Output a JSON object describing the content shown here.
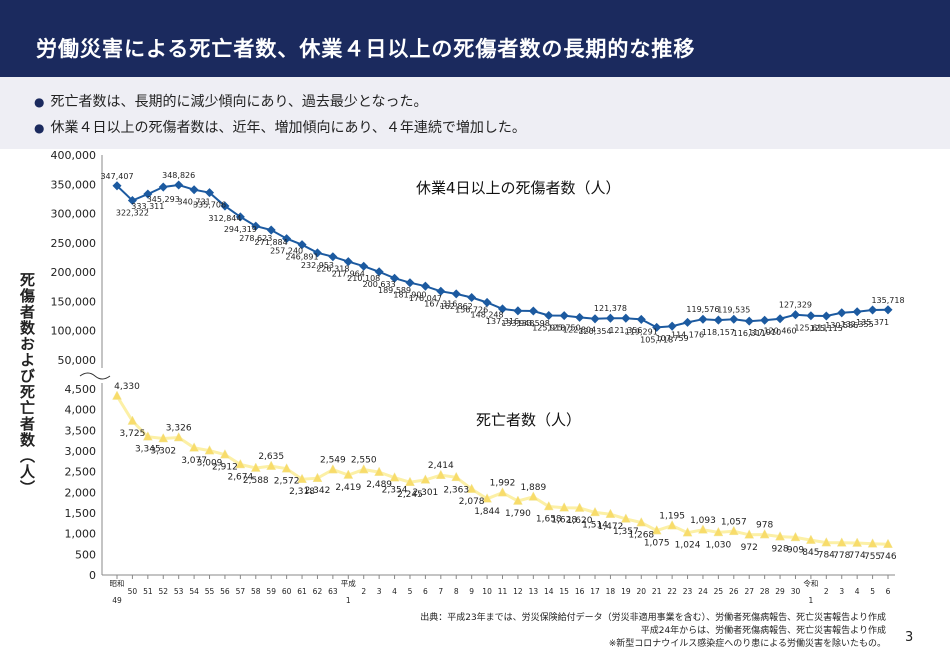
{
  "header": {
    "title": "労働災害による死亡者数、休業４日以上の死傷者数の長期的な推移"
  },
  "bullets": [
    "死亡者数は、長期的に減少傾向にあり、過去最少となった。",
    "休業４日以上の死傷者数は、近年、増加傾向にあり、４年連続で増加した。"
  ],
  "colors": {
    "header_bg": "#1b2a5e",
    "injury_series": "#1c5aa0",
    "death_series": "#fcf0a6",
    "death_marker": "#f8dc6a"
  },
  "chart_data": {
    "type": "line",
    "ylabel": "死傷者数および死亡者数（人）",
    "x_labels": [
      "昭和\n49",
      "50",
      "51",
      "52",
      "53",
      "54",
      "55",
      "56",
      "57",
      "58",
      "59",
      "60",
      "61",
      "62",
      "63",
      "平成\n1",
      "2",
      "3",
      "4",
      "5",
      "6",
      "7",
      "8",
      "9",
      "10",
      "11",
      "12",
      "13",
      "14",
      "15",
      "16",
      "17",
      "18",
      "19",
      "20",
      "21",
      "22",
      "23",
      "24",
      "25",
      "26",
      "27",
      "28",
      "29",
      "30",
      "令和\n1",
      "2",
      "3",
      "4",
      "5",
      "6"
    ],
    "series": [
      {
        "name": "休業4日以上の死傷者数（人）",
        "ylim": [
          50000,
          400000
        ],
        "yticks": [
          "400,000",
          "350,000",
          "300,000",
          "250,000",
          "200,000",
          "150,000",
          "100,000",
          "50,000"
        ],
        "values": [
          347407,
          322322,
          333311,
          345293,
          348826,
          340731,
          335706,
          312844,
          294319,
          278623,
          271884,
          257240,
          246891,
          232953,
          226318,
          217964,
          210108,
          200633,
          189589,
          181900,
          176047,
          167316,
          162862,
          156726,
          148248,
          137316,
          133948,
          133598,
          125918,
          125750,
          122804,
          120354,
          121378,
          121356,
          119291,
          105718,
          107759,
          114176,
          119576,
          118157,
          119535,
          116311,
          117910,
          120460,
          127329,
          125611,
          125115,
          130586,
          132355,
          135371,
          135718
        ],
        "labels": [
          "347,407",
          "322,322",
          "333,311",
          "345,293",
          "348,826",
          "340,731",
          "335,706",
          "312,844",
          "294,319",
          "278,623",
          "271,884",
          "257,240",
          "246,891",
          "232,953",
          "226,318",
          "217,964",
          "210,108",
          "200,633",
          "189,589",
          "181,900",
          "176,047",
          "167,316",
          "162,862",
          "156,726",
          "148,248",
          "137,316",
          "133,948",
          "133,598",
          "125,918",
          "125,750",
          "122,804",
          "120,354",
          "121,378",
          "121,356",
          "119,291",
          "105,718",
          "107,759",
          "114,176",
          "119,576",
          "118,157",
          "119,535",
          "116,311",
          "117,910",
          "120,460",
          "127,329",
          "125,611",
          "125,115",
          "130,586",
          "132,355",
          "135,371",
          "135,718"
        ]
      },
      {
        "name": "死亡者数（人）",
        "ylim": [
          0,
          4500
        ],
        "yticks": [
          "4,500",
          "4,000",
          "3,500",
          "3,000",
          "2,500",
          "2,000",
          "1,500",
          "1,000",
          "500",
          "0"
        ],
        "values": [
          4330,
          3725,
          3345,
          3302,
          3326,
          3077,
          3009,
          2912,
          2674,
          2588,
          2635,
          2572,
          2318,
          2342,
          2549,
          2419,
          2550,
          2489,
          2354,
          2245,
          2301,
          2414,
          2363,
          2078,
          1844,
          1992,
          1790,
          1889,
          1658,
          1628,
          1620,
          1514,
          1472,
          1357,
          1268,
          1075,
          1195,
          1024,
          1093,
          1030,
          1057,
          972,
          978,
          928,
          909,
          845,
          784,
          778,
          774,
          755,
          746
        ],
        "labels": [
          "4,330",
          "3,725",
          "3,345",
          "3,302",
          "3,326",
          "3,077",
          "3,009",
          "2,912",
          "2,674",
          "2,588",
          "2,635",
          "2,572",
          "2,318",
          "2,342",
          "2,549",
          "2,419",
          "2,550",
          "2,489",
          "2,354",
          "2,245",
          "2,301",
          "2,414",
          "2,363",
          "2,078",
          "1,844",
          "1,992",
          "1,790",
          "1,889",
          "1,658",
          "1,628",
          "1,620",
          "1,514",
          "1,472",
          "1,357",
          "1,268",
          "1,075",
          "1,195",
          "1,024",
          "1,093",
          "1,030",
          "1,057",
          "972",
          "978",
          "928",
          "909",
          "845",
          "784",
          "778",
          "774",
          "755",
          "746"
        ]
      }
    ]
  },
  "source": {
    "line1": "出典：平成23年までは、労災保険給付データ（労災非適用事業を含む）、労働者死傷病報告、死亡災害報告より作成",
    "line2": "平成24年からは、労働者死傷病報告、死亡災害報告より作成",
    "line3": "※新型コロナウイルス感染症へのり患による労働災害を除いたもの。"
  },
  "page_number": "3"
}
